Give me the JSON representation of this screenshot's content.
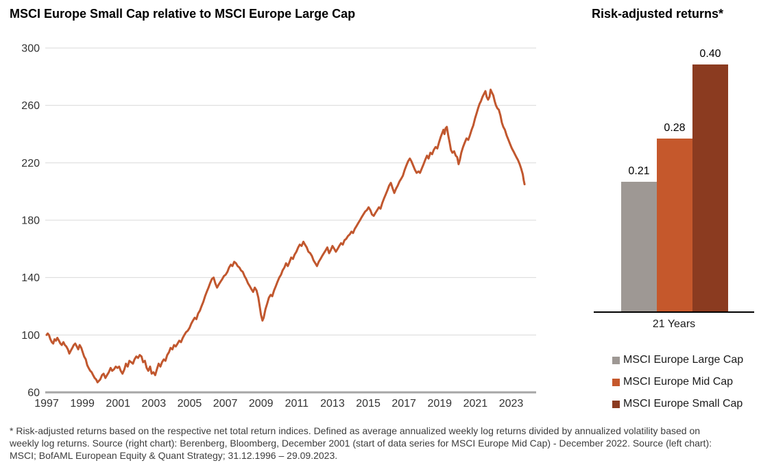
{
  "left_chart": {
    "title": "MSCI Europe Small Cap relative to MSCI Europe Large Cap"
  },
  "right_chart": {
    "title": "Risk-adjusted returns*",
    "category": "21 Years"
  },
  "footnote": {
    "lines": [
      "* Risk-adjusted returns based on the respective net total return indices. Defined as average annualized weekly log returns divided by annualized volatility based on",
      "weekly log returns. Source (right chart): Berenberg, Bloomberg, December 2001 (start of data series for MSCI Europe Mid Cap) - December 2022. Source (left chart):",
      "MSCI; BofAML European Equity & Quant Strategy; 31.12.1996 – 29.09.2023."
    ]
  },
  "chart_data": [
    {
      "type": "line",
      "title": "MSCI Europe Small Cap relative to MSCI Europe Large Cap",
      "xlabel": "",
      "ylabel": "",
      "ylim": [
        60,
        300
      ],
      "yticks": [
        60,
        100,
        140,
        180,
        220,
        260,
        300
      ],
      "x_domain": [
        1997,
        2024.4
      ],
      "xticks": [
        1997,
        1999,
        2001,
        2003,
        2005,
        2007,
        2009,
        2011,
        2013,
        2015,
        2017,
        2019,
        2021,
        2023
      ],
      "grid": true,
      "line_color": "#C1572E",
      "gridline_color": "#D9D9D9",
      "axis_color": "#A6A6A6",
      "points": [
        [
          1997.0,
          100
        ],
        [
          1997.06,
          101
        ],
        [
          1997.13,
          100
        ],
        [
          1997.21,
          97
        ],
        [
          1997.29,
          95
        ],
        [
          1997.37,
          94
        ],
        [
          1997.44,
          97
        ],
        [
          1997.52,
          96
        ],
        [
          1997.6,
          98
        ],
        [
          1997.69,
          96
        ],
        [
          1997.77,
          94
        ],
        [
          1997.85,
          93
        ],
        [
          1997.94,
          95
        ],
        [
          1998.02,
          93
        ],
        [
          1998.1,
          92
        ],
        [
          1998.19,
          90
        ],
        [
          1998.27,
          87
        ],
        [
          1998.35,
          89
        ],
        [
          1998.44,
          91
        ],
        [
          1998.52,
          93
        ],
        [
          1998.6,
          94
        ],
        [
          1998.69,
          92
        ],
        [
          1998.77,
          90
        ],
        [
          1998.85,
          93
        ],
        [
          1998.94,
          91
        ],
        [
          1999.02,
          88
        ],
        [
          1999.1,
          85
        ],
        [
          1999.19,
          83
        ],
        [
          1999.27,
          79
        ],
        [
          1999.35,
          77
        ],
        [
          1999.44,
          75
        ],
        [
          1999.52,
          74
        ],
        [
          1999.6,
          72
        ],
        [
          1999.69,
          70
        ],
        [
          1999.77,
          69
        ],
        [
          1999.85,
          67
        ],
        [
          2000.0,
          69
        ],
        [
          2000.1,
          72
        ],
        [
          2000.19,
          73
        ],
        [
          2000.29,
          70
        ],
        [
          2000.38,
          72
        ],
        [
          2000.48,
          74
        ],
        [
          2000.58,
          77
        ],
        [
          2000.67,
          75
        ],
        [
          2000.77,
          76
        ],
        [
          2000.87,
          78
        ],
        [
          2000.96,
          77
        ],
        [
          2001.06,
          78
        ],
        [
          2001.15,
          75
        ],
        [
          2001.25,
          73
        ],
        [
          2001.35,
          76
        ],
        [
          2001.44,
          80
        ],
        [
          2001.54,
          78
        ],
        [
          2001.63,
          82
        ],
        [
          2001.73,
          81
        ],
        [
          2001.83,
          80
        ],
        [
          2001.92,
          83
        ],
        [
          2002.02,
          85
        ],
        [
          2002.12,
          84
        ],
        [
          2002.21,
          86
        ],
        [
          2002.31,
          85
        ],
        [
          2002.4,
          81
        ],
        [
          2002.5,
          82
        ],
        [
          2002.6,
          77
        ],
        [
          2002.69,
          75
        ],
        [
          2002.79,
          78
        ],
        [
          2002.88,
          73
        ],
        [
          2002.98,
          74
        ],
        [
          2003.08,
          72
        ],
        [
          2003.17,
          76
        ],
        [
          2003.27,
          80
        ],
        [
          2003.37,
          78
        ],
        [
          2003.46,
          81
        ],
        [
          2003.56,
          83
        ],
        [
          2003.65,
          82
        ],
        [
          2003.75,
          86
        ],
        [
          2003.85,
          88
        ],
        [
          2003.94,
          91
        ],
        [
          2004.04,
          90
        ],
        [
          2004.13,
          93
        ],
        [
          2004.23,
          92
        ],
        [
          2004.33,
          94
        ],
        [
          2004.42,
          96
        ],
        [
          2004.52,
          95
        ],
        [
          2004.62,
          98
        ],
        [
          2004.71,
          100
        ],
        [
          2004.81,
          102
        ],
        [
          2004.9,
          103
        ],
        [
          2005.0,
          105
        ],
        [
          2005.1,
          108
        ],
        [
          2005.19,
          110
        ],
        [
          2005.29,
          112
        ],
        [
          2005.38,
          111
        ],
        [
          2005.48,
          115
        ],
        [
          2005.58,
          117
        ],
        [
          2005.67,
          120
        ],
        [
          2005.77,
          123
        ],
        [
          2005.87,
          127
        ],
        [
          2005.96,
          130
        ],
        [
          2006.06,
          133
        ],
        [
          2006.15,
          136
        ],
        [
          2006.25,
          139
        ],
        [
          2006.35,
          140
        ],
        [
          2006.44,
          136
        ],
        [
          2006.54,
          133
        ],
        [
          2006.63,
          135
        ],
        [
          2006.73,
          137
        ],
        [
          2006.83,
          139
        ],
        [
          2006.92,
          141
        ],
        [
          2007.02,
          142
        ],
        [
          2007.12,
          144
        ],
        [
          2007.21,
          147
        ],
        [
          2007.31,
          149
        ],
        [
          2007.4,
          148
        ],
        [
          2007.5,
          151
        ],
        [
          2007.6,
          150
        ],
        [
          2007.69,
          148
        ],
        [
          2007.79,
          147
        ],
        [
          2007.88,
          145
        ],
        [
          2007.98,
          144
        ],
        [
          2008.08,
          141
        ],
        [
          2008.17,
          139
        ],
        [
          2008.27,
          136
        ],
        [
          2008.37,
          134
        ],
        [
          2008.46,
          132
        ],
        [
          2008.56,
          130
        ],
        [
          2008.65,
          133
        ],
        [
          2008.75,
          131
        ],
        [
          2008.85,
          126
        ],
        [
          2008.94,
          119
        ],
        [
          2009.0,
          114
        ],
        [
          2009.08,
          110
        ],
        [
          2009.15,
          112
        ],
        [
          2009.25,
          118
        ],
        [
          2009.35,
          122
        ],
        [
          2009.44,
          126
        ],
        [
          2009.54,
          128
        ],
        [
          2009.63,
          127
        ],
        [
          2009.73,
          131
        ],
        [
          2009.83,
          134
        ],
        [
          2009.92,
          137
        ],
        [
          2010.02,
          140
        ],
        [
          2010.12,
          142
        ],
        [
          2010.21,
          145
        ],
        [
          2010.31,
          147
        ],
        [
          2010.4,
          150
        ],
        [
          2010.5,
          148
        ],
        [
          2010.6,
          151
        ],
        [
          2010.69,
          154
        ],
        [
          2010.79,
          153
        ],
        [
          2010.88,
          156
        ],
        [
          2010.98,
          158
        ],
        [
          2011.08,
          161
        ],
        [
          2011.17,
          163
        ],
        [
          2011.27,
          162
        ],
        [
          2011.37,
          165
        ],
        [
          2011.46,
          163
        ],
        [
          2011.56,
          161
        ],
        [
          2011.65,
          158
        ],
        [
          2011.75,
          157
        ],
        [
          2011.85,
          155
        ],
        [
          2011.94,
          152
        ],
        [
          2012.04,
          150
        ],
        [
          2012.13,
          148
        ],
        [
          2012.23,
          151
        ],
        [
          2012.33,
          153
        ],
        [
          2012.42,
          155
        ],
        [
          2012.52,
          157
        ],
        [
          2012.62,
          159
        ],
        [
          2012.71,
          161
        ],
        [
          2012.81,
          157
        ],
        [
          2012.9,
          159
        ],
        [
          2013.0,
          162
        ],
        [
          2013.1,
          160
        ],
        [
          2013.19,
          158
        ],
        [
          2013.29,
          160
        ],
        [
          2013.38,
          162
        ],
        [
          2013.48,
          164
        ],
        [
          2013.58,
          163
        ],
        [
          2013.67,
          166
        ],
        [
          2013.77,
          167
        ],
        [
          2013.87,
          169
        ],
        [
          2013.96,
          170
        ],
        [
          2014.06,
          172
        ],
        [
          2014.15,
          171
        ],
        [
          2014.25,
          174
        ],
        [
          2014.35,
          176
        ],
        [
          2014.44,
          178
        ],
        [
          2014.54,
          180
        ],
        [
          2014.63,
          182
        ],
        [
          2014.73,
          184
        ],
        [
          2014.83,
          186
        ],
        [
          2014.92,
          187
        ],
        [
          2015.02,
          189
        ],
        [
          2015.12,
          187
        ],
        [
          2015.21,
          184
        ],
        [
          2015.31,
          183
        ],
        [
          2015.4,
          185
        ],
        [
          2015.5,
          187
        ],
        [
          2015.6,
          189
        ],
        [
          2015.69,
          188
        ],
        [
          2015.79,
          192
        ],
        [
          2015.88,
          195
        ],
        [
          2015.98,
          198
        ],
        [
          2016.08,
          201
        ],
        [
          2016.17,
          204
        ],
        [
          2016.27,
          206
        ],
        [
          2016.37,
          202
        ],
        [
          2016.46,
          199
        ],
        [
          2016.56,
          202
        ],
        [
          2016.65,
          204
        ],
        [
          2016.75,
          207
        ],
        [
          2016.85,
          209
        ],
        [
          2016.94,
          211
        ],
        [
          2017.04,
          215
        ],
        [
          2017.13,
          218
        ],
        [
          2017.23,
          221
        ],
        [
          2017.33,
          223
        ],
        [
          2017.42,
          221
        ],
        [
          2017.52,
          218
        ],
        [
          2017.62,
          215
        ],
        [
          2017.71,
          213
        ],
        [
          2017.81,
          214
        ],
        [
          2017.9,
          213
        ],
        [
          2018.0,
          216
        ],
        [
          2018.1,
          219
        ],
        [
          2018.19,
          222
        ],
        [
          2018.29,
          225
        ],
        [
          2018.38,
          223
        ],
        [
          2018.48,
          227
        ],
        [
          2018.58,
          226
        ],
        [
          2018.67,
          229
        ],
        [
          2018.77,
          231
        ],
        [
          2018.87,
          230
        ],
        [
          2018.96,
          234
        ],
        [
          2019.06,
          238
        ],
        [
          2019.15,
          241
        ],
        [
          2019.21,
          243
        ],
        [
          2019.27,
          240
        ],
        [
          2019.33,
          244
        ],
        [
          2019.4,
          245
        ],
        [
          2019.48,
          239
        ],
        [
          2019.56,
          234
        ],
        [
          2019.63,
          229
        ],
        [
          2019.71,
          227
        ],
        [
          2019.81,
          228
        ],
        [
          2019.9,
          225
        ],
        [
          2019.98,
          224
        ],
        [
          2020.06,
          219
        ],
        [
          2020.13,
          222
        ],
        [
          2020.21,
          227
        ],
        [
          2020.31,
          231
        ],
        [
          2020.4,
          234
        ],
        [
          2020.5,
          237
        ],
        [
          2020.6,
          236
        ],
        [
          2020.69,
          239
        ],
        [
          2020.79,
          243
        ],
        [
          2020.88,
          246
        ],
        [
          2020.98,
          251
        ],
        [
          2021.08,
          255
        ],
        [
          2021.15,
          258
        ],
        [
          2021.23,
          261
        ],
        [
          2021.31,
          263
        ],
        [
          2021.4,
          266
        ],
        [
          2021.48,
          268
        ],
        [
          2021.56,
          270
        ],
        [
          2021.63,
          266
        ],
        [
          2021.71,
          264
        ],
        [
          2021.79,
          266
        ],
        [
          2021.85,
          271
        ],
        [
          2021.92,
          269
        ],
        [
          2022.0,
          267
        ],
        [
          2022.08,
          263
        ],
        [
          2022.15,
          260
        ],
        [
          2022.23,
          258
        ],
        [
          2022.31,
          257
        ],
        [
          2022.4,
          253
        ],
        [
          2022.48,
          248
        ],
        [
          2022.56,
          245
        ],
        [
          2022.65,
          243
        ],
        [
          2022.75,
          239
        ],
        [
          2022.85,
          236
        ],
        [
          2022.94,
          233
        ],
        [
          2023.04,
          230
        ],
        [
          2023.13,
          228
        ],
        [
          2023.21,
          226
        ],
        [
          2023.29,
          224
        ],
        [
          2023.38,
          222
        ],
        [
          2023.48,
          219
        ],
        [
          2023.56,
          216
        ],
        [
          2023.65,
          212
        ],
        [
          2023.7,
          208
        ],
        [
          2023.75,
          205
        ]
      ]
    },
    {
      "type": "bar",
      "title": "Risk-adjusted returns*",
      "categories": [
        "21 Years"
      ],
      "ylim": [
        0,
        0.45
      ],
      "series": [
        {
          "name": "MSCI Europe Large Cap",
          "values": [
            0.21
          ],
          "value_label": "0.21",
          "color": "#9E9894"
        },
        {
          "name": "MSCI Europe Mid Cap",
          "values": [
            0.28
          ],
          "value_label": "0.28",
          "color": "#C5582C"
        },
        {
          "name": "MSCI Europe Small Cap",
          "values": [
            0.4
          ],
          "value_label": "0.40",
          "color": "#8B3B20"
        }
      ],
      "legend_position": "below"
    }
  ]
}
